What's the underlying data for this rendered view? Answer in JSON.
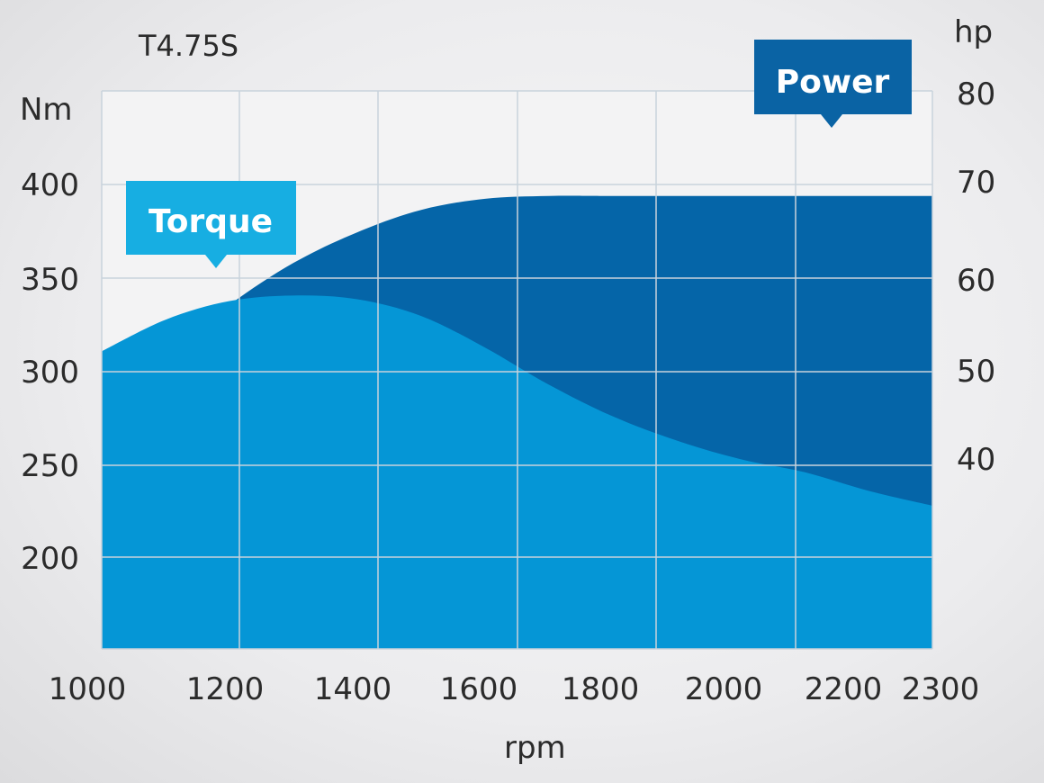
{
  "chart_data": {
    "type": "area",
    "title": "T4.75S",
    "xlabel": "rpm",
    "ylabel_left": "Nm",
    "ylabel_right": "hp",
    "x_ticks": [
      "1000",
      "1200",
      "1400",
      "1600",
      "1800",
      "2000",
      "2200",
      "2300"
    ],
    "y_left_ticks": [
      "400",
      "350",
      "300",
      "250",
      "200"
    ],
    "y_right_ticks": [
      "80",
      "70",
      "60",
      "50",
      "40"
    ],
    "x_range": [
      1000,
      2300
    ],
    "y_left_range": [
      150,
      450
    ],
    "y_right_range": [
      25,
      85
    ],
    "grid": true,
    "series": [
      {
        "name": "Power",
        "axis": "right",
        "color": "#0565a8",
        "x": [
          1000,
          1100,
          1200,
          1300,
          1400,
          1500,
          1600,
          1700,
          1800,
          2000,
          2200,
          2300
        ],
        "values": [
          51.5,
          56.5,
          62,
          66.5,
          69.8,
          72.2,
          73.4,
          73.7,
          73.7,
          73.7,
          73.7,
          73.7
        ]
      },
      {
        "name": "Torque",
        "axis": "left",
        "color": "#0596d6",
        "x": [
          1000,
          1100,
          1200,
          1300,
          1400,
          1500,
          1600,
          1700,
          1800,
          1900,
          2000,
          2100,
          2200,
          2300
        ],
        "values": [
          310,
          327,
          337,
          340,
          338,
          329,
          312,
          292,
          275,
          262,
          252,
          245,
          235,
          227
        ]
      }
    ]
  },
  "colors": {
    "power_fill": "#0565a8",
    "torque_fill": "#0596d6",
    "torque_callout": "#17aee2",
    "power_callout": "#0a63a4",
    "grid": "#c9d3dc"
  }
}
